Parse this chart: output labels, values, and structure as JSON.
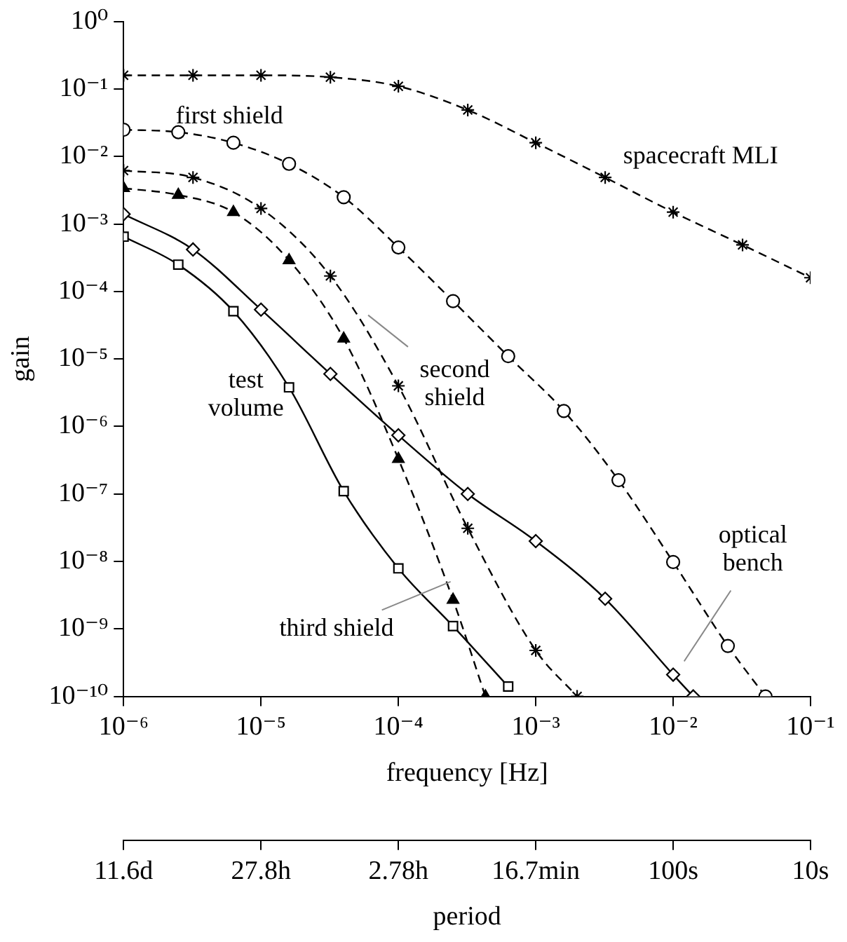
{
  "chart_data": {
    "type": "line",
    "xlabel": "frequency [Hz]",
    "ylabel": "gain",
    "x2label": "period",
    "log": "xy",
    "grid": false,
    "legend": false,
    "xlim": [
      1e-06,
      0.1
    ],
    "ylim": [
      1e-10,
      1
    ],
    "xticks": [
      {
        "value": 1e-06,
        "label": "10⁻⁶"
      },
      {
        "value": 1e-05,
        "label": "10⁻⁵"
      },
      {
        "value": 0.0001,
        "label": "10⁻⁴"
      },
      {
        "value": 0.001,
        "label": "10⁻³"
      },
      {
        "value": 0.01,
        "label": "10⁻²"
      },
      {
        "value": 0.1,
        "label": "10⁻¹"
      }
    ],
    "yticks": [
      {
        "value": 1,
        "label": "10⁰"
      },
      {
        "value": 0.1,
        "label": "10⁻¹"
      },
      {
        "value": 0.01,
        "label": "10⁻²"
      },
      {
        "value": 0.001,
        "label": "10⁻³"
      },
      {
        "value": 0.0001,
        "label": "10⁻⁴"
      },
      {
        "value": 1e-05,
        "label": "10⁻⁵"
      },
      {
        "value": 1e-06,
        "label": "10⁻⁶"
      },
      {
        "value": 1e-07,
        "label": "10⁻⁷"
      },
      {
        "value": 1e-08,
        "label": "10⁻⁸"
      },
      {
        "value": 1e-09,
        "label": "10⁻⁹"
      },
      {
        "value": 1e-10,
        "label": "10⁻¹⁰"
      }
    ],
    "annotations": [
      "11.6d",
      "27.8h",
      "2.78h",
      "16.7min",
      "100s",
      "10s"
    ],
    "series": [
      {
        "name": "spacecraft MLI",
        "color": "#000000",
        "marker": "cross",
        "line_style": "dashed",
        "x": [
          1e-06,
          3.2e-06,
          1e-05,
          3.2e-05,
          0.0001,
          0.00032,
          0.001,
          0.0032,
          0.01,
          0.032,
          0.1
        ],
        "values": [
          0.16,
          0.16,
          0.16,
          0.15,
          0.11,
          0.049,
          0.016,
          0.0049,
          0.0015,
          0.00049,
          0.00016
        ]
      },
      {
        "name": "first shield",
        "color": "#000000",
        "marker": "circle",
        "line_style": "dashed",
        "x": [
          1e-06,
          2.5e-06,
          6.3e-06,
          1.6e-05,
          4e-05,
          0.0001,
          0.00025,
          0.00063,
          0.0016,
          0.004,
          0.01,
          0.025,
          0.047
        ],
        "values": [
          0.025,
          0.023,
          0.016,
          0.0078,
          0.0025,
          0.00045,
          7.2e-05,
          1.1e-05,
          1.7e-06,
          1.6e-07,
          9.8e-09,
          5.6e-10,
          1e-10
        ]
      },
      {
        "name": "second shield",
        "color": "#000000",
        "marker": "cross",
        "line_style": "dashed",
        "x": [
          1e-06,
          3.2e-06,
          1e-05,
          3.2e-05,
          0.0001,
          0.00032,
          0.001,
          0.002
        ],
        "values": [
          0.0062,
          0.0049,
          0.0017,
          0.00017,
          4e-06,
          3.1e-08,
          4.8e-10,
          1e-10
        ]
      },
      {
        "name": "third shield",
        "color": "#000000",
        "marker": "triangle",
        "line_style": "dashed",
        "x": [
          1e-06,
          2.5e-06,
          6.3e-06,
          1.6e-05,
          4e-05,
          0.0001,
          0.00025,
          0.00043
        ],
        "values": [
          0.0034,
          0.0027,
          0.0015,
          0.00029,
          2e-05,
          3.3e-07,
          2.7e-09,
          1e-10
        ]
      },
      {
        "name": "optical bench",
        "color": "#000000",
        "marker": "diamond",
        "line_style": "solid",
        "x": [
          1e-06,
          3.2e-06,
          1e-05,
          3.2e-05,
          0.0001,
          0.00032,
          0.001,
          0.0032,
          0.01,
          0.014
        ],
        "values": [
          0.0014,
          0.00042,
          5.4e-05,
          6e-06,
          7.4e-07,
          1e-07,
          2e-08,
          2.8e-09,
          2.1e-10,
          1e-10
        ]
      },
      {
        "name": "test volume",
        "color": "#000000",
        "marker": "square",
        "line_style": "solid",
        "x": [
          1e-06,
          2.5e-06,
          6.3e-06,
          1.6e-05,
          4e-05,
          0.0001,
          0.00025,
          0.00063
        ],
        "values": [
          0.00065,
          0.00025,
          5.1e-05,
          3.8e-06,
          1.1e-07,
          7.9e-09,
          1.1e-09,
          1.4e-10
        ]
      }
    ]
  }
}
